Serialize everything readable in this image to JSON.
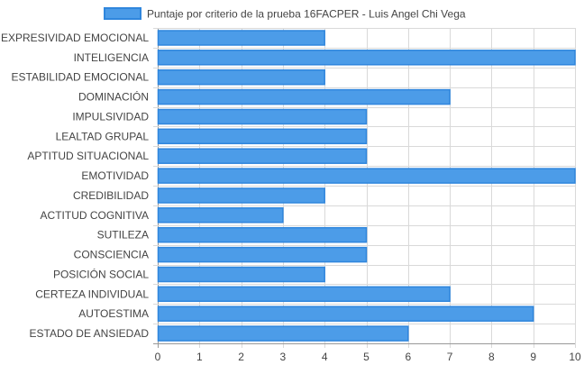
{
  "chart_data": {
    "type": "bar",
    "orientation": "horizontal",
    "legend": {
      "position": "top",
      "label": "Puntaje por criterio de la prueba 16FACPER - Luis Angel Chi Vega"
    },
    "categories": [
      "EXPRESIVIDAD EMOCIONAL",
      "INTELIGENCIA",
      "ESTABILIDAD EMOCIONAL",
      "DOMINACIÓN",
      "IMPULSIVIDAD",
      "LEALTAD GRUPAL",
      "APTITUD SITUACIONAL",
      "EMOTIVIDAD",
      "CREDIBILIDAD",
      "ACTITUD COGNITIVA",
      "SUTILEZA",
      "CONSCIENCIA",
      "POSICIÓN SOCIAL",
      "CERTEZA INDIVIDUAL",
      "AUTOESTIMA",
      "ESTADO DE ANSIEDAD"
    ],
    "series": [
      {
        "name": "Puntaje por criterio de la prueba 16FACPER - Luis Angel Chi Vega",
        "values": [
          4,
          10,
          4,
          7,
          5,
          5,
          5,
          10,
          4,
          3,
          5,
          5,
          4,
          7,
          9,
          6
        ]
      }
    ],
    "xlim": [
      0,
      10
    ],
    "x_ticks": [
      "0",
      "1",
      "2",
      "3",
      "4",
      "5",
      "6",
      "7",
      "8",
      "9",
      "10"
    ],
    "grid": true,
    "colors": {
      "bar_fill": "#4c9ce8",
      "bar_stroke": "#2f86dd",
      "grid": "#d9d9d9",
      "axis": "#999999",
      "text": "#444444"
    }
  }
}
